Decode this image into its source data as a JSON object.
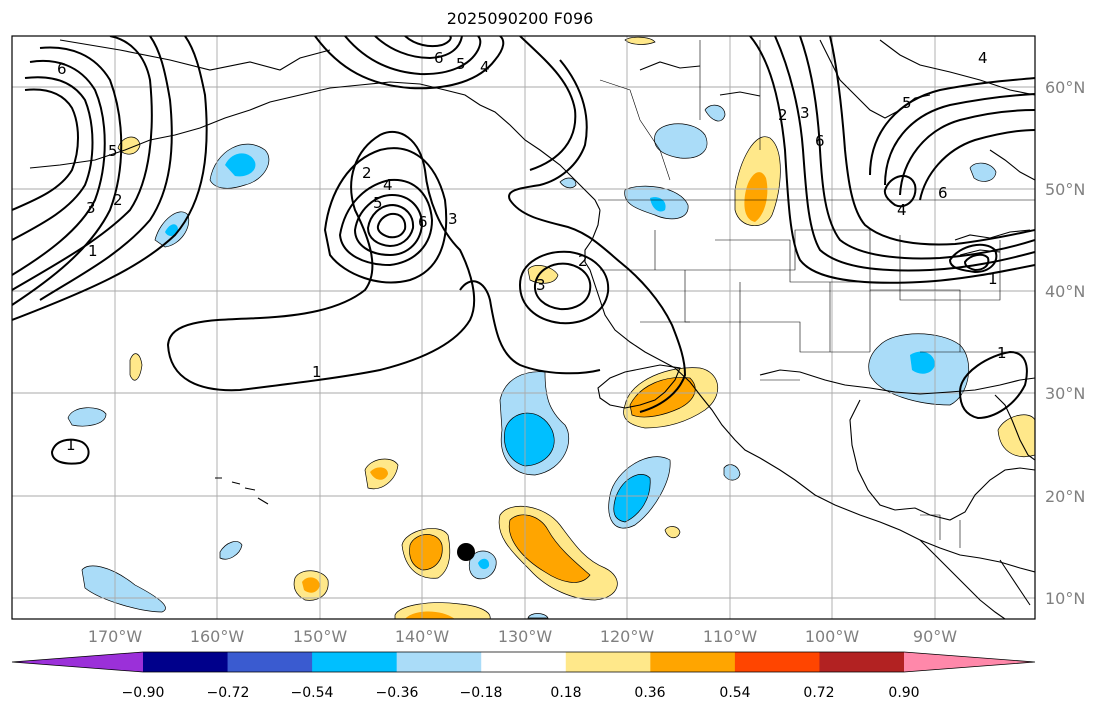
{
  "title": "2025090200 F096",
  "map": {
    "longitude_labels": [
      "170°W",
      "160°W",
      "150°W",
      "140°W",
      "130°W",
      "120°W",
      "110°W",
      "100°W",
      "90°W"
    ],
    "latitude_labels": [
      "60°N",
      "50°N",
      "40°N",
      "30°N",
      "20°N",
      "10°N"
    ],
    "contour_labels": [
      "6",
      "5",
      "3",
      "2",
      "1",
      "6",
      "5",
      "4",
      "2",
      "3",
      "5",
      "4",
      "6",
      "3",
      "1",
      "2",
      "3",
      "2",
      "6",
      "5",
      "4",
      "6",
      "4",
      "1",
      "1",
      "1"
    ]
  },
  "colorbar": {
    "tick_labels": [
      "−0.90",
      "−0.72",
      "−0.54",
      "−0.36",
      "−0.18",
      "0.18",
      "0.36",
      "0.54",
      "0.72",
      "0.90"
    ],
    "colors": [
      "#9b30d9",
      "#00008b",
      "#3a5bd0",
      "#00bfff",
      "#aadcf8",
      "#ffffff",
      "#ffe88a",
      "#ffa500",
      "#ff4500",
      "#b22222",
      "#ff88aa"
    ]
  }
}
